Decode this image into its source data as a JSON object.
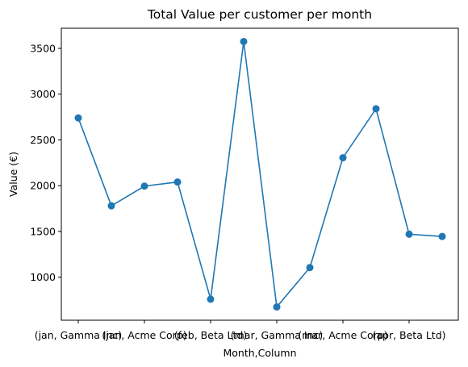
{
  "chart_data": {
    "type": "line",
    "title": "Total Value per customer per month",
    "xlabel": "Month,Column",
    "ylabel": "Value (€)",
    "grid": false,
    "color": "#1f77b4",
    "categories": [
      "(jan, Gamma Inc)",
      "",
      "(jan, Acme Corp)",
      "",
      "(feb, Beta Ltd)",
      "",
      "(mar, Gamma Inc)",
      "",
      "(mar, Acme Corp)",
      "",
      "(apr, Beta Ltd)",
      ""
    ],
    "values": [
      2740,
      1780,
      1995,
      2040,
      760,
      3575,
      675,
      1105,
      2305,
      2840,
      1470,
      1445
    ],
    "yticks": [
      1000,
      1500,
      2000,
      2500,
      3000,
      3500
    ],
    "ylim": [
      530,
      3720
    ]
  }
}
